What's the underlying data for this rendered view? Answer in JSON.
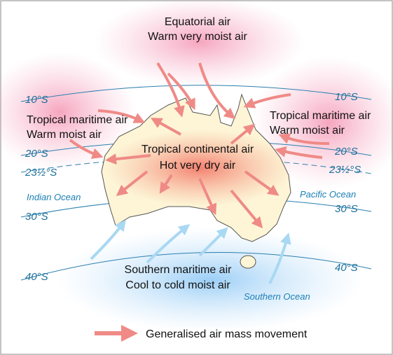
{
  "air_masses": [
    {
      "name": "Equatorial air",
      "description": "Warm very moist air"
    },
    {
      "name": "Tropical maritime air",
      "description": "Warm moist air"
    },
    {
      "name": "Tropical maritime air",
      "description": "Warm moist air"
    },
    {
      "name": "Tropical continental air",
      "description": "Hot very dry air"
    },
    {
      "name": "Southern maritime air",
      "description": "Cool to cold moist air"
    }
  ],
  "latitudes": [
    {
      "left": "10°S",
      "right": "10°S"
    },
    {
      "left": "20°S",
      "right": "20°S"
    },
    {
      "left": "23½°S",
      "right": "23½°S"
    },
    {
      "left": "30°S",
      "right": "30°S"
    },
    {
      "left": "40°S",
      "right": "40°S"
    }
  ],
  "oceans": [
    "Indian Ocean",
    "Pacific Ocean",
    "Southern Ocean"
  ],
  "legend": {
    "label": "Generalised air mass movement"
  }
}
